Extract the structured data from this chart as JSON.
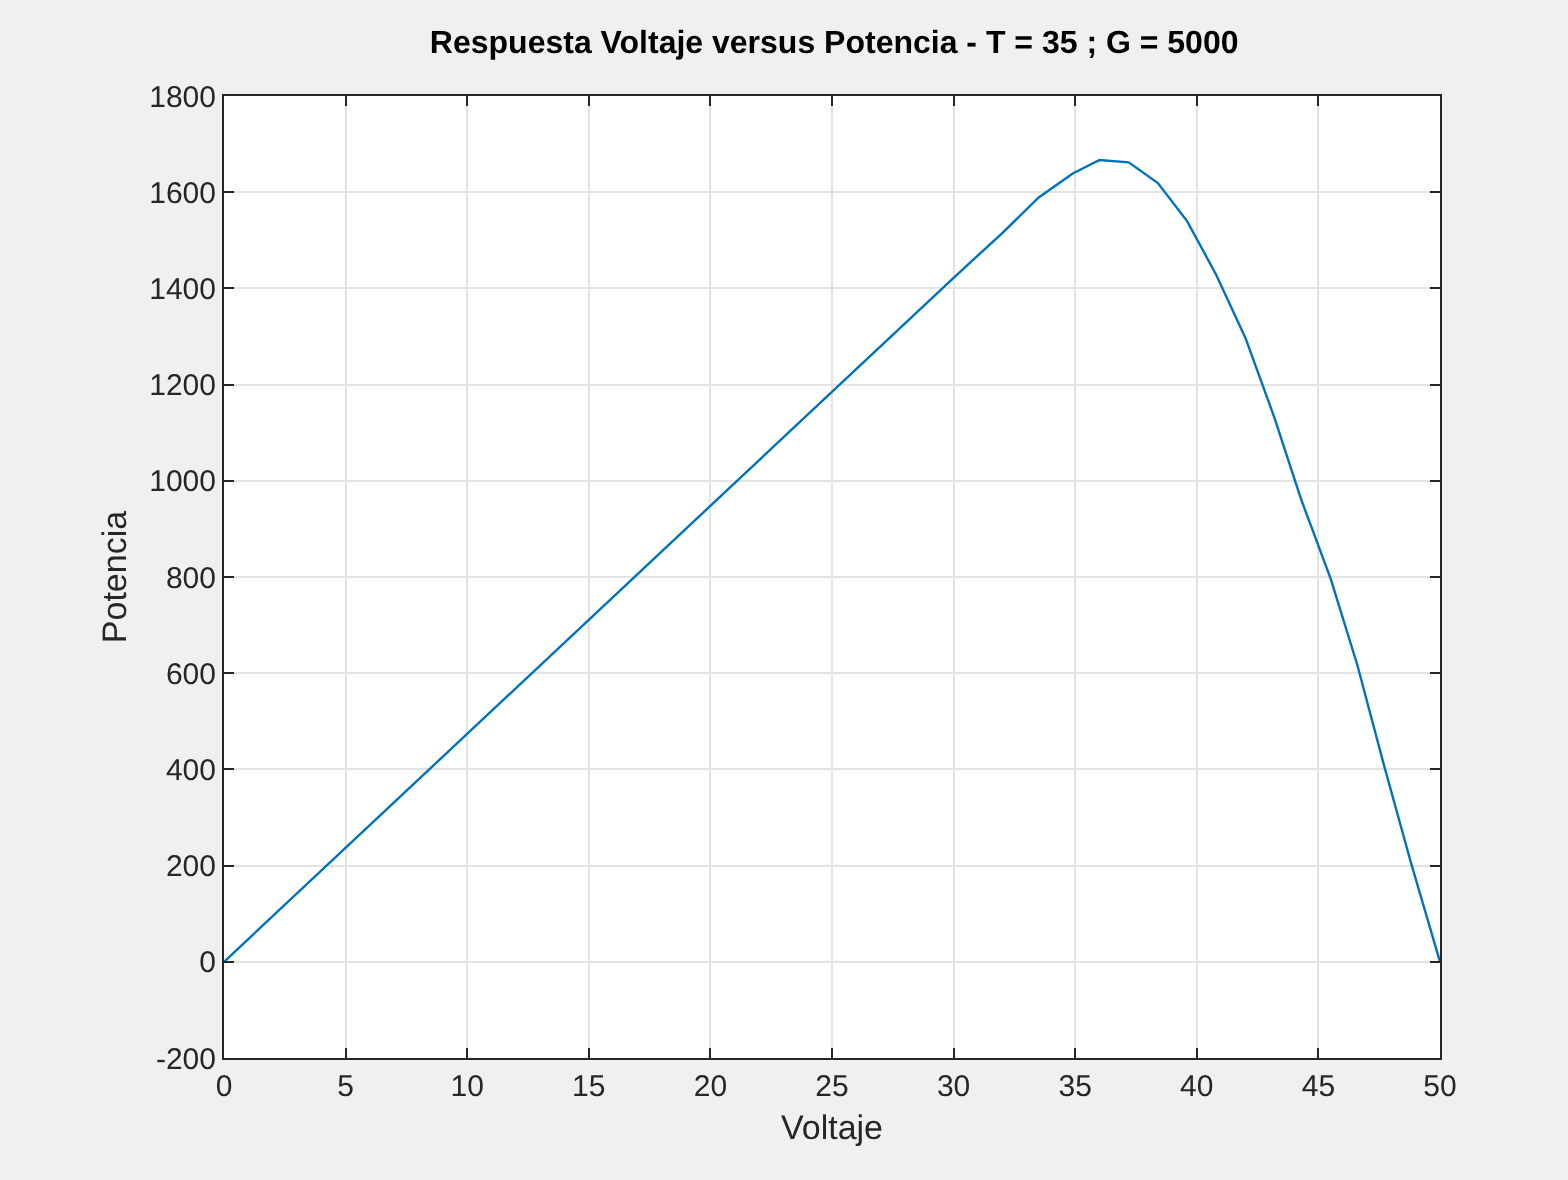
{
  "chart_data": {
    "type": "line",
    "title": "Respuesta Voltaje versus Potencia - T = 35 ; G = 5000",
    "xlabel": "Voltaje",
    "ylabel": "Potencia",
    "series": [
      {
        "color": "#0072bd",
        "x": [
          0,
          30,
          32,
          33.5,
          34.9,
          36.0,
          37.2,
          38.4,
          39.6,
          40.8,
          42.0,
          43.2,
          44.3,
          45.5,
          46.6,
          47.7,
          48.8,
          50
        ],
        "values": [
          0,
          1422,
          1515,
          1589,
          1639,
          1667,
          1662,
          1619,
          1540,
          1428,
          1297,
          1130,
          960,
          797,
          617,
          408,
          207,
          0
        ]
      }
    ],
    "xlim": [
      0,
      50
    ],
    "xticks": [
      0,
      5,
      10,
      15,
      20,
      25,
      30,
      35,
      40,
      45,
      50
    ],
    "ylim": [
      -200,
      1800
    ],
    "yticks": [
      -200,
      0,
      200,
      400,
      600,
      800,
      1000,
      1200,
      1400,
      1600,
      1800
    ],
    "grid": true,
    "legend": false,
    "marker": "none",
    "line_style": "solid"
  }
}
